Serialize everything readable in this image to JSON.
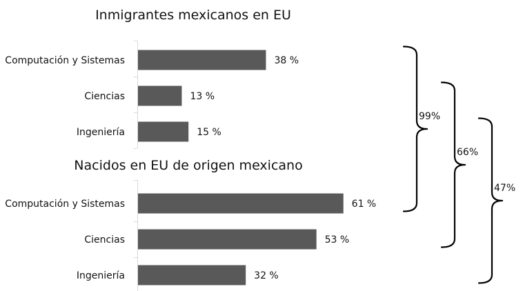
{
  "chart_data": [
    {
      "type": "bar",
      "orientation": "horizontal",
      "title": "Inmigrantes mexicanos en EU",
      "categories": [
        "Computación y Sistemas",
        "Ciencias",
        "Ingeniería"
      ],
      "values": [
        38,
        13,
        15
      ],
      "value_labels": [
        "38 %",
        "13 %",
        "15 %"
      ],
      "bar_color": "#595959",
      "grid": false
    },
    {
      "type": "bar",
      "orientation": "horizontal",
      "title": "Nacidos en EU de origen mexicano",
      "categories": [
        "Computación y Sistemas",
        "Ciencias",
        "Ingeniería"
      ],
      "values": [
        61,
        53,
        32
      ],
      "value_labels": [
        "61 %",
        "53 %",
        "32 %"
      ],
      "bar_color": "#595959",
      "grid": false
    }
  ],
  "comparisons": [
    {
      "label": "99%",
      "from": "Computación y Sistemas",
      "to": "Computación y Sistemas"
    },
    {
      "label": "66%",
      "from": "Ciencias",
      "to": "Ciencias"
    },
    {
      "label": "47%",
      "from": "Ingeniería",
      "to": "Ingeniería"
    }
  ]
}
